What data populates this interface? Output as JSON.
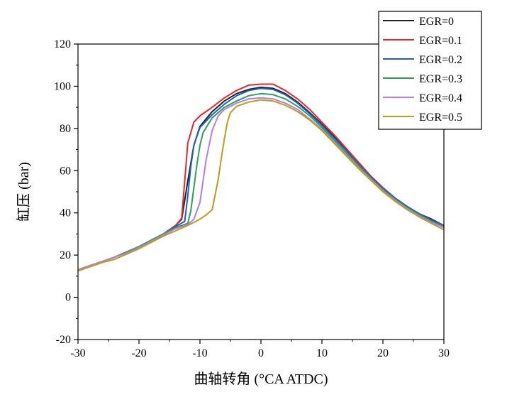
{
  "chart_data": {
    "type": "line",
    "title": "",
    "xlabel": "曲轴转角 (°CA ATDC)",
    "ylabel": "缸压 (bar)",
    "xlim": [
      -30,
      30
    ],
    "ylim": [
      -20,
      120
    ],
    "xticks": [
      -30,
      -20,
      -10,
      0,
      10,
      20,
      30
    ],
    "yticks": [
      -20,
      0,
      20,
      40,
      60,
      80,
      100,
      120
    ],
    "grid": false,
    "legend_position": "top-right",
    "series": [
      {
        "name": "EGR=0",
        "color": "#1f1f1f",
        "x": [
          -30,
          -28,
          -26,
          -24,
          -22,
          -20,
          -18,
          -16,
          -14,
          -13,
          -12,
          -11,
          -10,
          -8,
          -6,
          -4,
          -2,
          0,
          2,
          4,
          6,
          8,
          10,
          12,
          14,
          16,
          18,
          20,
          22,
          24,
          26,
          28,
          30
        ],
        "y": [
          13,
          15,
          17,
          19,
          21.5,
          24,
          27,
          30,
          34,
          37,
          55,
          72,
          81,
          88,
          93,
          96.5,
          98.5,
          99.5,
          99,
          96.5,
          92.5,
          87.5,
          82,
          76,
          70,
          63.5,
          57,
          51.5,
          47,
          43,
          39.5,
          37,
          34
        ]
      },
      {
        "name": "EGR=0.1",
        "color": "#e8262c",
        "x": [
          -30,
          -28,
          -26,
          -24,
          -22,
          -20,
          -18,
          -16,
          -14,
          -13,
          -12.5,
          -12,
          -11,
          -10,
          -8,
          -6,
          -4,
          -2,
          0,
          2,
          4,
          6,
          8,
          10,
          12,
          14,
          16,
          18,
          20,
          22,
          24,
          26,
          28,
          30
        ],
        "y": [
          13,
          15,
          17,
          19,
          21.5,
          24,
          27,
          30,
          34,
          37.5,
          55,
          73,
          83,
          86,
          90,
          94.5,
          98,
          100.5,
          101,
          101,
          98,
          94,
          89,
          83,
          77,
          70.5,
          64,
          57.5,
          52,
          47,
          43,
          39.5,
          36.5,
          34
        ]
      },
      {
        "name": "EGR=0.2",
        "color": "#1f5fbf",
        "x": [
          -30,
          -28,
          -26,
          -24,
          -22,
          -20,
          -18,
          -16,
          -14,
          -12.5,
          -12,
          -11.5,
          -11,
          -10,
          -8,
          -6,
          -4,
          -2,
          0,
          2,
          4,
          6,
          8,
          10,
          12,
          14,
          16,
          18,
          20,
          22,
          24,
          26,
          28,
          30
        ],
        "y": [
          13,
          15,
          17,
          19,
          21.5,
          24,
          27,
          30,
          33.5,
          36,
          48,
          62,
          72,
          80.5,
          86.5,
          91.5,
          95.5,
          98,
          99,
          98.5,
          96,
          92,
          87,
          81.5,
          75.5,
          69.5,
          63,
          57,
          51.5,
          47,
          43,
          39.5,
          36.5,
          34
        ]
      },
      {
        "name": "EGR=0.3",
        "color": "#2e9e5b",
        "x": [
          -30,
          -28,
          -26,
          -24,
          -22,
          -20,
          -18,
          -16,
          -14,
          -12,
          -11.5,
          -11,
          -10.5,
          -10,
          -9.5,
          -8,
          -6,
          -4,
          -2,
          0,
          2,
          4,
          6,
          8,
          10,
          12,
          14,
          16,
          18,
          20,
          22,
          24,
          26,
          28,
          30
        ],
        "y": [
          13,
          15,
          17,
          19,
          21.5,
          24,
          27,
          30,
          33,
          35,
          41,
          52,
          63,
          72,
          78,
          85,
          90,
          93,
          95.5,
          96.5,
          96,
          94,
          90.5,
          86,
          80.5,
          74.5,
          68.5,
          62.5,
          56.5,
          51,
          46.5,
          42.5,
          39,
          36,
          33.5
        ]
      },
      {
        "name": "EGR=0.4",
        "color": "#b37fe0",
        "x": [
          -30,
          -28,
          -26,
          -24,
          -22,
          -20,
          -18,
          -16,
          -14,
          -12,
          -11,
          -10,
          -9.5,
          -9,
          -8.5,
          -8,
          -7,
          -6,
          -4,
          -2,
          0,
          2,
          4,
          6,
          8,
          10,
          12,
          14,
          16,
          18,
          20,
          22,
          24,
          26,
          28,
          30
        ],
        "y": [
          13,
          15,
          17,
          19,
          21,
          23.5,
          26.5,
          29.5,
          32.5,
          34.5,
          37,
          45,
          55,
          65,
          72,
          79,
          86,
          89,
          92,
          94,
          94.5,
          94,
          92,
          89,
          84.5,
          79.5,
          73.5,
          67.5,
          61.5,
          56,
          50.5,
          46,
          42,
          38.5,
          35.5,
          33
        ]
      },
      {
        "name": "EGR=0.5",
        "color": "#c19a1b",
        "x": [
          -30,
          -28,
          -26,
          -24,
          -22,
          -20,
          -18,
          -16,
          -14,
          -12,
          -10,
          -9,
          -8,
          -7,
          -6.5,
          -6,
          -5.5,
          -5,
          -4,
          -2,
          0,
          2,
          4,
          6,
          8,
          10,
          12,
          14,
          16,
          18,
          20,
          22,
          24,
          26,
          28,
          30
        ],
        "y": [
          12.5,
          14.5,
          16.5,
          18,
          20.5,
          23,
          26,
          29,
          31.5,
          34,
          37,
          39,
          41.5,
          56,
          66,
          75,
          83,
          87.5,
          90.5,
          92.5,
          93.5,
          93,
          91,
          88,
          84,
          79,
          73,
          67,
          61,
          55.5,
          50,
          45.5,
          41.5,
          38,
          35,
          32
        ]
      }
    ]
  }
}
